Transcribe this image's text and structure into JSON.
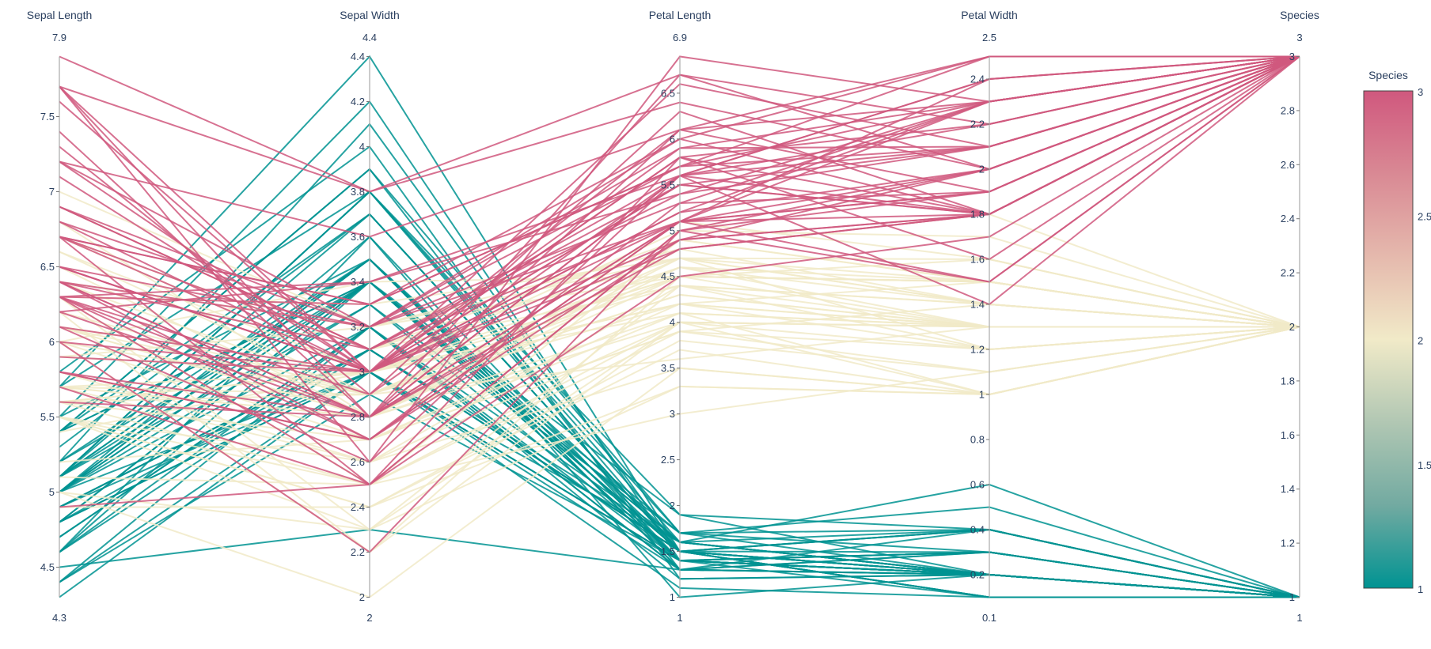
{
  "chart_data": {
    "type": "parallel_coordinates",
    "colorscale": [
      "#009392",
      "#72aaa1",
      "#b1c7b3",
      "#f1eac8",
      "#e5b9ad",
      "#d98994",
      "#d0587e"
    ],
    "color_dimension": "Species",
    "colorbar": {
      "title": "Species",
      "range": [
        1,
        3
      ],
      "ticks": [
        1,
        1.5,
        2,
        2.5,
        3
      ]
    },
    "dimensions": [
      {
        "label": "Sepal Length",
        "range": [
          4.3,
          7.9
        ],
        "ticks": [
          4.5,
          5,
          5.5,
          6,
          6.5,
          7,
          7.5
        ]
      },
      {
        "label": "Sepal Width",
        "range": [
          2,
          4.4
        ],
        "ticks": [
          2,
          2.2,
          2.4,
          2.6,
          2.8,
          3,
          3.2,
          3.4,
          3.6,
          3.8,
          4,
          4.2,
          4.4
        ]
      },
      {
        "label": "Petal Length",
        "range": [
          1,
          6.9
        ],
        "ticks": [
          1,
          1.5,
          2,
          2.5,
          3,
          3.5,
          4,
          4.5,
          5,
          5.5,
          6,
          6.5
        ]
      },
      {
        "label": "Petal Width",
        "range": [
          0.1,
          2.5
        ],
        "ticks": [
          0.2,
          0.4,
          0.6,
          0.8,
          1,
          1.2,
          1.4,
          1.6,
          1.8,
          2,
          2.2,
          2.4
        ]
      },
      {
        "label": "Species",
        "range": [
          1,
          3
        ],
        "ticks": [
          1,
          1.2,
          1.4,
          1.6,
          1.8,
          2,
          2.2,
          2.4,
          2.6,
          2.8,
          3
        ]
      }
    ],
    "rows": [
      [
        5.1,
        3.5,
        1.4,
        0.2,
        1
      ],
      [
        4.9,
        3.0,
        1.4,
        0.2,
        1
      ],
      [
        4.7,
        3.2,
        1.3,
        0.2,
        1
      ],
      [
        4.6,
        3.1,
        1.5,
        0.2,
        1
      ],
      [
        5.0,
        3.6,
        1.4,
        0.2,
        1
      ],
      [
        5.4,
        3.9,
        1.7,
        0.4,
        1
      ],
      [
        4.6,
        3.4,
        1.4,
        0.3,
        1
      ],
      [
        5.0,
        3.4,
        1.5,
        0.2,
        1
      ],
      [
        4.4,
        2.9,
        1.4,
        0.2,
        1
      ],
      [
        4.9,
        3.1,
        1.5,
        0.1,
        1
      ],
      [
        5.4,
        3.7,
        1.5,
        0.2,
        1
      ],
      [
        4.8,
        3.4,
        1.6,
        0.2,
        1
      ],
      [
        4.8,
        3.0,
        1.4,
        0.1,
        1
      ],
      [
        4.3,
        3.0,
        1.1,
        0.1,
        1
      ],
      [
        5.8,
        4.0,
        1.2,
        0.2,
        1
      ],
      [
        5.7,
        4.4,
        1.5,
        0.4,
        1
      ],
      [
        5.4,
        3.9,
        1.3,
        0.4,
        1
      ],
      [
        5.1,
        3.5,
        1.4,
        0.3,
        1
      ],
      [
        5.7,
        3.8,
        1.7,
        0.3,
        1
      ],
      [
        5.1,
        3.8,
        1.5,
        0.3,
        1
      ],
      [
        5.4,
        3.4,
        1.7,
        0.2,
        1
      ],
      [
        5.1,
        3.7,
        1.5,
        0.4,
        1
      ],
      [
        4.6,
        3.6,
        1.0,
        0.2,
        1
      ],
      [
        5.1,
        3.3,
        1.7,
        0.5,
        1
      ],
      [
        4.8,
        3.4,
        1.9,
        0.2,
        1
      ],
      [
        5.0,
        3.0,
        1.6,
        0.2,
        1
      ],
      [
        5.0,
        3.4,
        1.6,
        0.4,
        1
      ],
      [
        5.2,
        3.5,
        1.5,
        0.2,
        1
      ],
      [
        5.2,
        3.4,
        1.4,
        0.2,
        1
      ],
      [
        4.7,
        3.2,
        1.6,
        0.2,
        1
      ],
      [
        4.8,
        3.1,
        1.6,
        0.2,
        1
      ],
      [
        5.4,
        3.4,
        1.5,
        0.4,
        1
      ],
      [
        5.2,
        4.1,
        1.5,
        0.1,
        1
      ],
      [
        5.5,
        4.2,
        1.4,
        0.2,
        1
      ],
      [
        4.9,
        3.1,
        1.5,
        0.1,
        1
      ],
      [
        5.0,
        3.2,
        1.2,
        0.2,
        1
      ],
      [
        5.5,
        3.5,
        1.3,
        0.2,
        1
      ],
      [
        4.9,
        3.1,
        1.5,
        0.1,
        1
      ],
      [
        4.4,
        3.0,
        1.3,
        0.2,
        1
      ],
      [
        5.1,
        3.4,
        1.5,
        0.2,
        1
      ],
      [
        5.0,
        3.5,
        1.3,
        0.3,
        1
      ],
      [
        4.5,
        2.3,
        1.3,
        0.3,
        1
      ],
      [
        4.4,
        3.2,
        1.3,
        0.2,
        1
      ],
      [
        5.0,
        3.5,
        1.6,
        0.6,
        1
      ],
      [
        5.1,
        3.8,
        1.9,
        0.4,
        1
      ],
      [
        4.8,
        3.0,
        1.4,
        0.3,
        1
      ],
      [
        5.1,
        3.8,
        1.6,
        0.2,
        1
      ],
      [
        4.6,
        3.2,
        1.4,
        0.2,
        1
      ],
      [
        5.3,
        3.7,
        1.5,
        0.2,
        1
      ],
      [
        5.0,
        3.3,
        1.4,
        0.2,
        1
      ],
      [
        7.0,
        3.2,
        4.7,
        1.4,
        2
      ],
      [
        6.4,
        3.2,
        4.5,
        1.5,
        2
      ],
      [
        6.9,
        3.1,
        4.9,
        1.5,
        2
      ],
      [
        5.5,
        2.3,
        4.0,
        1.3,
        2
      ],
      [
        6.5,
        2.8,
        4.6,
        1.5,
        2
      ],
      [
        5.7,
        2.8,
        4.5,
        1.3,
        2
      ],
      [
        6.3,
        3.3,
        4.7,
        1.6,
        2
      ],
      [
        4.9,
        2.4,
        3.3,
        1.0,
        2
      ],
      [
        6.6,
        2.9,
        4.6,
        1.3,
        2
      ],
      [
        5.2,
        2.7,
        3.9,
        1.4,
        2
      ],
      [
        5.0,
        2.0,
        3.5,
        1.0,
        2
      ],
      [
        5.9,
        3.0,
        4.2,
        1.5,
        2
      ],
      [
        6.0,
        2.2,
        4.0,
        1.0,
        2
      ],
      [
        6.1,
        2.9,
        4.7,
        1.4,
        2
      ],
      [
        5.6,
        2.9,
        3.6,
        1.3,
        2
      ],
      [
        6.7,
        3.1,
        4.4,
        1.4,
        2
      ],
      [
        5.6,
        3.0,
        4.5,
        1.5,
        2
      ],
      [
        5.8,
        2.7,
        4.1,
        1.0,
        2
      ],
      [
        6.2,
        2.2,
        4.5,
        1.5,
        2
      ],
      [
        5.6,
        2.5,
        3.9,
        1.1,
        2
      ],
      [
        5.9,
        3.2,
        4.8,
        1.8,
        2
      ],
      [
        6.1,
        2.8,
        4.0,
        1.3,
        2
      ],
      [
        6.3,
        2.5,
        4.9,
        1.5,
        2
      ],
      [
        6.1,
        2.8,
        4.7,
        1.2,
        2
      ],
      [
        6.4,
        2.9,
        4.3,
        1.3,
        2
      ],
      [
        6.6,
        3.0,
        4.4,
        1.4,
        2
      ],
      [
        6.8,
        2.8,
        4.8,
        1.4,
        2
      ],
      [
        6.7,
        3.0,
        5.0,
        1.7,
        2
      ],
      [
        6.0,
        2.9,
        4.5,
        1.5,
        2
      ],
      [
        5.7,
        2.6,
        3.5,
        1.0,
        2
      ],
      [
        5.5,
        2.4,
        3.8,
        1.1,
        2
      ],
      [
        5.5,
        2.4,
        3.7,
        1.0,
        2
      ],
      [
        5.8,
        2.7,
        3.9,
        1.2,
        2
      ],
      [
        6.0,
        2.7,
        5.1,
        1.6,
        2
      ],
      [
        5.4,
        3.0,
        4.5,
        1.5,
        2
      ],
      [
        6.0,
        3.4,
        4.5,
        1.6,
        2
      ],
      [
        6.7,
        3.1,
        4.7,
        1.5,
        2
      ],
      [
        6.3,
        2.3,
        4.4,
        1.3,
        2
      ],
      [
        5.6,
        3.0,
        4.1,
        1.3,
        2
      ],
      [
        5.5,
        2.5,
        4.0,
        1.3,
        2
      ],
      [
        5.5,
        2.6,
        4.4,
        1.2,
        2
      ],
      [
        6.1,
        3.0,
        4.6,
        1.4,
        2
      ],
      [
        5.8,
        2.6,
        4.0,
        1.2,
        2
      ],
      [
        5.0,
        2.3,
        3.3,
        1.0,
        2
      ],
      [
        5.6,
        2.7,
        4.2,
        1.3,
        2
      ],
      [
        5.7,
        3.0,
        4.2,
        1.2,
        2
      ],
      [
        5.7,
        2.9,
        4.2,
        1.3,
        2
      ],
      [
        6.2,
        2.9,
        4.3,
        1.3,
        2
      ],
      [
        5.1,
        2.5,
        3.0,
        1.1,
        2
      ],
      [
        5.7,
        2.8,
        4.1,
        1.3,
        2
      ],
      [
        6.3,
        3.3,
        6.0,
        2.5,
        3
      ],
      [
        5.8,
        2.7,
        5.1,
        1.9,
        3
      ],
      [
        7.1,
        3.0,
        5.9,
        2.1,
        3
      ],
      [
        6.3,
        2.9,
        5.6,
        1.8,
        3
      ],
      [
        6.5,
        3.0,
        5.8,
        2.2,
        3
      ],
      [
        7.6,
        3.0,
        6.6,
        2.1,
        3
      ],
      [
        4.9,
        2.5,
        4.5,
        1.7,
        3
      ],
      [
        7.3,
        2.9,
        6.3,
        1.8,
        3
      ],
      [
        6.7,
        2.5,
        5.8,
        1.8,
        3
      ],
      [
        7.2,
        3.6,
        6.1,
        2.5,
        3
      ],
      [
        6.5,
        3.2,
        5.1,
        2.0,
        3
      ],
      [
        6.4,
        2.7,
        5.3,
        1.9,
        3
      ],
      [
        6.8,
        3.0,
        5.5,
        2.1,
        3
      ],
      [
        5.7,
        2.5,
        5.0,
        2.0,
        3
      ],
      [
        5.8,
        2.8,
        5.1,
        2.4,
        3
      ],
      [
        6.4,
        3.2,
        5.3,
        2.3,
        3
      ],
      [
        6.5,
        3.0,
        5.5,
        1.8,
        3
      ],
      [
        7.7,
        3.8,
        6.7,
        2.2,
        3
      ],
      [
        7.7,
        2.6,
        6.9,
        2.3,
        3
      ],
      [
        6.0,
        2.2,
        5.0,
        1.5,
        3
      ],
      [
        6.9,
        3.2,
        5.7,
        2.3,
        3
      ],
      [
        5.6,
        2.8,
        4.9,
        2.0,
        3
      ],
      [
        7.7,
        2.8,
        6.7,
        2.0,
        3
      ],
      [
        6.3,
        2.7,
        4.9,
        1.8,
        3
      ],
      [
        6.7,
        3.3,
        5.7,
        2.1,
        3
      ],
      [
        7.2,
        3.2,
        6.0,
        1.8,
        3
      ],
      [
        6.2,
        2.8,
        4.8,
        1.8,
        3
      ],
      [
        6.1,
        3.0,
        4.9,
        1.8,
        3
      ],
      [
        6.4,
        2.8,
        5.6,
        2.1,
        3
      ],
      [
        7.2,
        3.0,
        5.8,
        1.6,
        3
      ],
      [
        7.4,
        2.8,
        6.1,
        1.9,
        3
      ],
      [
        7.9,
        3.8,
        6.4,
        2.0,
        3
      ],
      [
        6.4,
        2.8,
        5.6,
        2.2,
        3
      ],
      [
        6.3,
        2.8,
        5.1,
        1.5,
        3
      ],
      [
        6.1,
        2.6,
        5.6,
        1.4,
        3
      ],
      [
        7.7,
        3.0,
        6.1,
        2.3,
        3
      ],
      [
        6.3,
        3.4,
        5.6,
        2.4,
        3
      ],
      [
        6.4,
        3.1,
        5.5,
        1.8,
        3
      ],
      [
        6.0,
        3.0,
        4.8,
        1.8,
        3
      ],
      [
        6.9,
        3.1,
        5.4,
        2.1,
        3
      ],
      [
        6.7,
        3.1,
        5.6,
        2.4,
        3
      ],
      [
        6.9,
        3.1,
        5.1,
        2.3,
        3
      ],
      [
        5.8,
        2.7,
        5.1,
        1.9,
        3
      ],
      [
        6.8,
        3.2,
        5.9,
        2.3,
        3
      ],
      [
        6.7,
        3.3,
        5.7,
        2.5,
        3
      ],
      [
        6.7,
        3.0,
        5.2,
        2.3,
        3
      ],
      [
        6.3,
        2.5,
        5.0,
        1.9,
        3
      ],
      [
        6.5,
        3.0,
        5.2,
        2.0,
        3
      ],
      [
        6.2,
        3.4,
        5.4,
        2.3,
        3
      ],
      [
        5.9,
        3.0,
        5.1,
        1.8,
        3
      ]
    ]
  }
}
